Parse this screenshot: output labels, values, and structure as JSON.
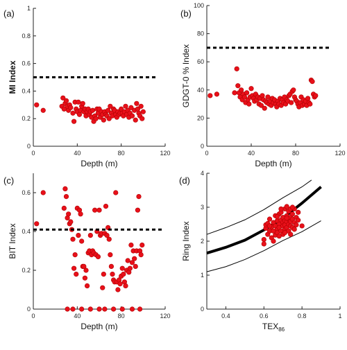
{
  "colors": {
    "point": "#e8101a",
    "point_edge": "#b00000",
    "axis": "#222222",
    "line": "#000000"
  },
  "chart_data": [
    {
      "panel": "(a)",
      "type": "scatter",
      "xlabel": "Depth (m)",
      "ylabel": "MI Index",
      "ylabel_bold": true,
      "xlim": [
        0,
        120
      ],
      "ylim": [
        0,
        1
      ],
      "xticks": [
        0,
        40,
        80,
        120
      ],
      "yticks": [
        0,
        0.2,
        0.4,
        0.6,
        0.8,
        1
      ],
      "ytick_labels": [
        "0",
        "0.2",
        "0.4",
        "0.6",
        "0.8",
        "1"
      ],
      "reference_line": {
        "y": 0.5,
        "x": [
          0,
          113
        ],
        "style": "dashed"
      },
      "points": [
        [
          3,
          0.3
        ],
        [
          9,
          0.26
        ],
        [
          26,
          0.29
        ],
        [
          27,
          0.35
        ],
        [
          28,
          0.27
        ],
        [
          29,
          0.31
        ],
        [
          30,
          0.33
        ],
        [
          31,
          0.29
        ],
        [
          32,
          0.26
        ],
        [
          33,
          0.3
        ],
        [
          34,
          0.28
        ],
        [
          36,
          0.24
        ],
        [
          37,
          0.18
        ],
        [
          38,
          0.32
        ],
        [
          39,
          0.27
        ],
        [
          40,
          0.25
        ],
        [
          41,
          0.32
        ],
        [
          42,
          0.23
        ],
        [
          43,
          0.26
        ],
        [
          44,
          0.29
        ],
        [
          45,
          0.31
        ],
        [
          46,
          0.25
        ],
        [
          47,
          0.27
        ],
        [
          48,
          0.22
        ],
        [
          49,
          0.25
        ],
        [
          50,
          0.27
        ],
        [
          51,
          0.23
        ],
        [
          52,
          0.25
        ],
        [
          53,
          0.21
        ],
        [
          54,
          0.26
        ],
        [
          55,
          0.18
        ],
        [
          56,
          0.22
        ],
        [
          57,
          0.2
        ],
        [
          58,
          0.27
        ],
        [
          59,
          0.24
        ],
        [
          60,
          0.27
        ],
        [
          61,
          0.21
        ],
        [
          62,
          0.25
        ],
        [
          63,
          0.23
        ],
        [
          64,
          0.19
        ],
        [
          65,
          0.25
        ],
        [
          66,
          0.23
        ],
        [
          67,
          0.22
        ],
        [
          68,
          0.26
        ],
        [
          69,
          0.2
        ],
        [
          70,
          0.29
        ],
        [
          71,
          0.24
        ],
        [
          72,
          0.22
        ],
        [
          73,
          0.27
        ],
        [
          74,
          0.26
        ],
        [
          75,
          0.23
        ],
        [
          76,
          0.21
        ],
        [
          77,
          0.25
        ],
        [
          78,
          0.23
        ],
        [
          79,
          0.24
        ],
        [
          80,
          0.27
        ],
        [
          81,
          0.24
        ],
        [
          82,
          0.22
        ],
        [
          83,
          0.25
        ],
        [
          84,
          0.29
        ],
        [
          85,
          0.23
        ],
        [
          86,
          0.26
        ],
        [
          87,
          0.21
        ],
        [
          88,
          0.24
        ],
        [
          89,
          0.28
        ],
        [
          90,
          0.22
        ],
        [
          92,
          0.26
        ],
        [
          93,
          0.19
        ],
        [
          94,
          0.31
        ],
        [
          95,
          0.27
        ],
        [
          96,
          0.24
        ],
        [
          97,
          0.22
        ],
        [
          98,
          0.29
        ],
        [
          99,
          0.2
        ],
        [
          100,
          0.25
        ]
      ]
    },
    {
      "panel": "(b)",
      "type": "scatter",
      "xlabel": "Depth (m)",
      "ylabel": "GDGT-0 % Index",
      "ylabel_bold": false,
      "xlim": [
        0,
        120
      ],
      "ylim": [
        0,
        100
      ],
      "xticks": [
        0,
        40,
        80,
        120
      ],
      "yticks": [
        0,
        20,
        40,
        60,
        80,
        100
      ],
      "ytick_labels": [
        "0",
        "20",
        "40",
        "60",
        "80",
        "100"
      ],
      "reference_line": {
        "y": 70,
        "x": [
          0,
          112
        ],
        "style": "dashed"
      },
      "points": [
        [
          3,
          36
        ],
        [
          9,
          37
        ],
        [
          25,
          38
        ],
        [
          27,
          55
        ],
        [
          28,
          43
        ],
        [
          29,
          38
        ],
        [
          30,
          35
        ],
        [
          31,
          40
        ],
        [
          32,
          33
        ],
        [
          33,
          37
        ],
        [
          34,
          35
        ],
        [
          35,
          31
        ],
        [
          36,
          38
        ],
        [
          37,
          33
        ],
        [
          38,
          30
        ],
        [
          39,
          35
        ],
        [
          40,
          41
        ],
        [
          41,
          36
        ],
        [
          42,
          34
        ],
        [
          43,
          32
        ],
        [
          44,
          37
        ],
        [
          45,
          33
        ],
        [
          46,
          35
        ],
        [
          47,
          30
        ],
        [
          48,
          34
        ],
        [
          49,
          29
        ],
        [
          50,
          36
        ],
        [
          51,
          33
        ],
        [
          52,
          27
        ],
        [
          53,
          32
        ],
        [
          54,
          31
        ],
        [
          55,
          35
        ],
        [
          56,
          30
        ],
        [
          57,
          32
        ],
        [
          58,
          29
        ],
        [
          59,
          34
        ],
        [
          60,
          31
        ],
        [
          61,
          33
        ],
        [
          62,
          30
        ],
        [
          63,
          28
        ],
        [
          64,
          32
        ],
        [
          65,
          30
        ],
        [
          66,
          34
        ],
        [
          67,
          29
        ],
        [
          68,
          33
        ],
        [
          69,
          31
        ],
        [
          70,
          35
        ],
        [
          71,
          30
        ],
        [
          72,
          33
        ],
        [
          73,
          32
        ],
        [
          74,
          36
        ],
        [
          75,
          37
        ],
        [
          76,
          31
        ],
        [
          77,
          39
        ],
        [
          78,
          40
        ],
        [
          79,
          35
        ],
        [
          80,
          33
        ],
        [
          81,
          32
        ],
        [
          82,
          30
        ],
        [
          83,
          28
        ],
        [
          84,
          31
        ],
        [
          85,
          35
        ],
        [
          86,
          29
        ],
        [
          87,
          33
        ],
        [
          88,
          30
        ],
        [
          89,
          32
        ],
        [
          90,
          29
        ],
        [
          91,
          34
        ],
        [
          92,
          31
        ],
        [
          93,
          30
        ],
        [
          94,
          47
        ],
        [
          95,
          46
        ],
        [
          96,
          37
        ],
        [
          97,
          35
        ],
        [
          98,
          36
        ]
      ]
    },
    {
      "panel": "(c)",
      "type": "scatter",
      "xlabel": "Depth (m)",
      "ylabel": "BIT Index",
      "ylabel_bold": false,
      "xlim": [
        0,
        120
      ],
      "ylim": [
        0,
        0.7
      ],
      "xticks": [
        0,
        40,
        80,
        120
      ],
      "yticks": [
        0,
        0.2,
        0.4,
        0.6
      ],
      "ytick_labels": [
        "0",
        "0.2",
        "0.4",
        "0.6"
      ],
      "reference_line": {
        "y": 0.41,
        "x": [
          0,
          119
        ],
        "style": "dashed"
      },
      "points": [
        [
          3,
          0.44
        ],
        [
          9,
          0.6
        ],
        [
          28,
          0.52
        ],
        [
          29,
          0.62
        ],
        [
          30,
          0.58
        ],
        [
          31,
          0.47
        ],
        [
          32,
          0.49
        ],
        [
          33,
          0.44
        ],
        [
          34,
          0.45
        ],
        [
          35,
          0.41
        ],
        [
          36,
          0.36
        ],
        [
          37,
          0.21
        ],
        [
          38,
          0.28
        ],
        [
          39,
          0.18
        ],
        [
          40,
          0.52
        ],
        [
          41,
          0.38
        ],
        [
          42,
          0.51
        ],
        [
          43,
          0.49
        ],
        [
          44,
          0.35
        ],
        [
          45,
          0.22
        ],
        [
          46,
          0.22
        ],
        [
          47,
          0.16
        ],
        [
          48,
          0.2
        ],
        [
          49,
          0.12
        ],
        [
          50,
          0.29
        ],
        [
          51,
          0.3
        ],
        [
          52,
          0.38
        ],
        [
          53,
          0.28
        ],
        [
          54,
          0.3
        ],
        [
          55,
          0.29
        ],
        [
          56,
          0.51
        ],
        [
          57,
          0.28
        ],
        [
          58,
          0.4
        ],
        [
          59,
          0.27
        ],
        [
          60,
          0.51
        ],
        [
          61,
          0.38
        ],
        [
          62,
          0.39
        ],
        [
          63,
          0.11
        ],
        [
          64,
          0.18
        ],
        [
          65,
          0.39
        ],
        [
          66,
          0.53
        ],
        [
          67,
          0.38
        ],
        [
          68,
          0.42
        ],
        [
          69,
          0.36
        ],
        [
          70,
          0.28
        ],
        [
          71,
          0.22
        ],
        [
          72,
          0.18
        ],
        [
          73,
          0.15
        ],
        [
          74,
          0.14
        ],
        [
          75,
          0.6
        ],
        [
          76,
          0.14
        ],
        [
          77,
          0.1
        ],
        [
          78,
          0.15
        ],
        [
          79,
          0.13
        ],
        [
          80,
          0.17
        ],
        [
          81,
          0.21
        ],
        [
          82,
          0.18
        ],
        [
          83,
          0.14
        ],
        [
          84,
          0.12
        ],
        [
          85,
          0.2
        ],
        [
          86,
          0.25
        ],
        [
          87,
          0.19
        ],
        [
          88,
          0.21
        ],
        [
          89,
          0.33
        ],
        [
          90,
          0.24
        ],
        [
          91,
          0.3
        ],
        [
          92,
          0.26
        ],
        [
          93,
          0.22
        ],
        [
          94,
          0.3
        ],
        [
          95,
          0.51
        ],
        [
          96,
          0.58
        ],
        [
          97,
          0.3
        ],
        [
          98,
          0.28
        ],
        [
          99,
          0.33
        ],
        [
          31,
          0.0
        ],
        [
          36,
          0.0
        ],
        [
          44,
          0.0
        ],
        [
          52,
          0.0
        ],
        [
          60,
          0.0
        ],
        [
          65,
          0.0
        ],
        [
          73,
          0.0
        ],
        [
          81,
          0.0
        ],
        [
          90,
          0.0
        ],
        [
          97,
          0.0
        ]
      ]
    },
    {
      "panel": "(d)",
      "type": "scatter",
      "xlabel": "TEX86",
      "xlabel_base": "TEX",
      "xlabel_sub": "86",
      "ylabel": "Ring Index",
      "ylabel_bold": false,
      "xlim": [
        0.3,
        1.0
      ],
      "ylim": [
        0,
        4
      ],
      "xticks": [
        0.4,
        0.6,
        0.8,
        1.0
      ],
      "xtick_labels": [
        "0.4",
        "0.6",
        "0.8",
        "1"
      ],
      "yticks": [
        0,
        1,
        2,
        3,
        4
      ],
      "ytick_labels": [
        "0",
        "1",
        "2",
        "3",
        "4"
      ],
      "curves": [
        {
          "name": "",
          "style": "thick",
          "x": [
            0.3,
            0.4,
            0.5,
            0.6,
            0.7,
            0.8,
            0.9
          ],
          "y": [
            1.65,
            1.82,
            2.03,
            2.33,
            2.68,
            3.12,
            3.6
          ]
        },
        {
          "name": "",
          "style": "thin",
          "x": [
            0.3,
            0.4,
            0.5,
            0.6,
            0.7,
            0.8,
            0.85
          ],
          "y": [
            2.2,
            2.4,
            2.63,
            2.93,
            3.28,
            3.6,
            3.8
          ]
        },
        {
          "name": "",
          "style": "thin",
          "x": [
            0.3,
            0.4,
            0.5,
            0.6,
            0.7,
            0.8,
            0.9
          ],
          "y": [
            1.1,
            1.25,
            1.46,
            1.72,
            2.02,
            2.28,
            2.6
          ]
        }
      ],
      "points": [
        [
          0.6,
          1.92
        ],
        [
          0.6,
          2.05
        ],
        [
          0.61,
          2.38
        ],
        [
          0.61,
          2.48
        ],
        [
          0.62,
          2.2
        ],
        [
          0.62,
          2.52
        ],
        [
          0.63,
          2.3
        ],
        [
          0.63,
          2.65
        ],
        [
          0.64,
          2.1
        ],
        [
          0.64,
          2.42
        ],
        [
          0.65,
          2.55
        ],
        [
          0.65,
          2.3
        ],
        [
          0.66,
          2.75
        ],
        [
          0.66,
          2.18
        ],
        [
          0.66,
          2.45
        ],
        [
          0.67,
          2.6
        ],
        [
          0.67,
          2.35
        ],
        [
          0.67,
          2.25
        ],
        [
          0.68,
          2.5
        ],
        [
          0.68,
          2.8
        ],
        [
          0.68,
          2.4
        ],
        [
          0.69,
          2.62
        ],
        [
          0.69,
          2.3
        ],
        [
          0.69,
          2.85
        ],
        [
          0.7,
          2.55
        ],
        [
          0.7,
          2.45
        ],
        [
          0.7,
          2.7
        ],
        [
          0.7,
          2.2
        ],
        [
          0.71,
          2.95
        ],
        [
          0.71,
          2.6
        ],
        [
          0.71,
          2.35
        ],
        [
          0.71,
          2.48
        ],
        [
          0.72,
          2.75
        ],
        [
          0.72,
          2.4
        ],
        [
          0.72,
          2.58
        ],
        [
          0.72,
          3.02
        ],
        [
          0.73,
          2.65
        ],
        [
          0.73,
          2.3
        ],
        [
          0.73,
          2.88
        ],
        [
          0.73,
          2.5
        ],
        [
          0.74,
          2.7
        ],
        [
          0.74,
          2.45
        ],
        [
          0.74,
          2.95
        ],
        [
          0.74,
          2.58
        ],
        [
          0.75,
          2.8
        ],
        [
          0.75,
          2.4
        ],
        [
          0.75,
          2.65
        ],
        [
          0.76,
          2.95
        ],
        [
          0.76,
          2.55
        ],
        [
          0.76,
          2.35
        ],
        [
          0.77,
          2.7
        ],
        [
          0.77,
          2.48
        ],
        [
          0.78,
          2.62
        ],
        [
          0.78,
          2.85
        ],
        [
          0.8,
          2.45
        ],
        [
          0.65,
          2.0
        ],
        [
          0.68,
          2.15
        ],
        [
          0.71,
          2.25
        ],
        [
          0.74,
          2.2
        ],
        [
          0.69,
          2.95
        ],
        [
          0.72,
          2.68
        ],
        [
          0.67,
          2.72
        ],
        [
          0.75,
          3.0
        ],
        [
          0.63,
          2.45
        ]
      ]
    }
  ]
}
